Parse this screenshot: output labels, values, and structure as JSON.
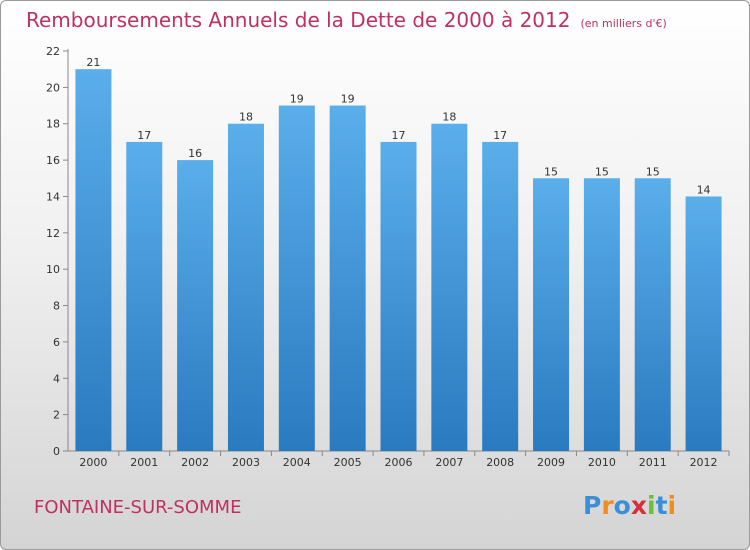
{
  "header": {
    "title": "Remboursements Annuels de la Dette de 2000 à 2012",
    "unit": "(en milliers d'€)"
  },
  "footer": {
    "commune": "FONTAINE-SUR-SOMME",
    "logo": "Proxiti"
  },
  "colors": {
    "bar_top": "#5aaeea",
    "bar_bottom": "#2a7ac0",
    "title": "#c03060"
  },
  "chart_data": {
    "type": "bar",
    "title": "Remboursements Annuels de la Dette de 2000 à 2012",
    "unit": "(en milliers d'€)",
    "categories": [
      "2000",
      "2001",
      "2002",
      "2003",
      "2004",
      "2005",
      "2006",
      "2007",
      "2008",
      "2009",
      "2010",
      "2011",
      "2012"
    ],
    "values": [
      21,
      17,
      16,
      18,
      19,
      19,
      17,
      18,
      17,
      15,
      15,
      15,
      14
    ],
    "data_labels": [
      "21",
      "17",
      "16",
      "18",
      "19",
      "19",
      "17",
      "18",
      "17",
      "15",
      "15",
      "15",
      "14"
    ],
    "ylim": [
      0,
      22
    ],
    "yticks": [
      "0",
      "2",
      "4",
      "6",
      "8",
      "10",
      "12",
      "14",
      "16",
      "18",
      "20",
      "22"
    ],
    "grid": false,
    "legend": "none"
  }
}
